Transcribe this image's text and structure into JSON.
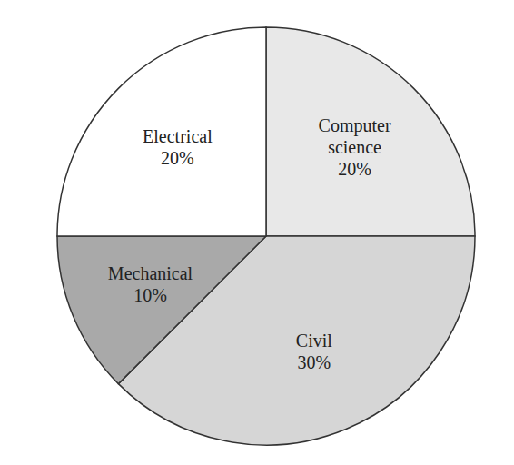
{
  "chart_data": {
    "type": "pie",
    "categories": [
      "Computer science",
      "Civil",
      "Mechanical",
      "Electrical"
    ],
    "values": [
      20,
      30,
      10,
      20
    ],
    "value_labels": [
      "20%",
      "30%",
      "10%",
      "20%"
    ],
    "colors": [
      "#e8e8e8",
      "#d6d6d6",
      "#a9a9a9",
      "#ffffff"
    ],
    "data_labels": true
  }
}
